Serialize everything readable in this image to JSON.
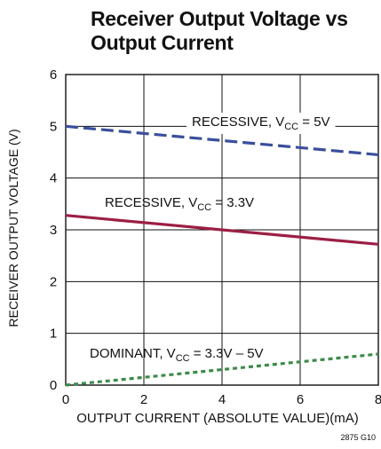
{
  "title_line1": "Receiver Output Voltage vs",
  "title_line2": "Output Current",
  "figure_code": "2875 G10",
  "chart_data": {
    "type": "line",
    "title": "Receiver Output Voltage vs Output Current",
    "xlabel": "OUTPUT CURRENT (ABSOLUTE VALUE)(mA)",
    "ylabel": "RECEIVER OUTPUT VOLTAGE (V)",
    "xlim": [
      0,
      8
    ],
    "ylim": [
      0,
      6
    ],
    "x_ticks": [
      "0",
      "2",
      "4",
      "6",
      "8"
    ],
    "y_ticks": [
      "0",
      "1",
      "2",
      "3",
      "4",
      "5",
      "6"
    ],
    "grid": true,
    "series": [
      {
        "label_main": "RECESSIVE, V",
        "label_sub": "CC",
        "label_tail": " = 5V",
        "style": "dashed",
        "color": "#3a4f9c",
        "x": [
          0,
          8
        ],
        "y": [
          5.0,
          4.45
        ]
      },
      {
        "label_main": "RECESSIVE, V",
        "label_sub": "CC",
        "label_tail": " = 3.3V",
        "style": "solid",
        "color": "#9c1f45",
        "x": [
          0,
          8
        ],
        "y": [
          3.28,
          2.72
        ]
      },
      {
        "label_main": "DOMINANT, V",
        "label_sub": "CC",
        "label_tail": " = 3.3V – 5V",
        "style": "dotted",
        "color": "#3e8a4a",
        "x": [
          0,
          8
        ],
        "y": [
          0.0,
          0.6
        ]
      }
    ]
  }
}
